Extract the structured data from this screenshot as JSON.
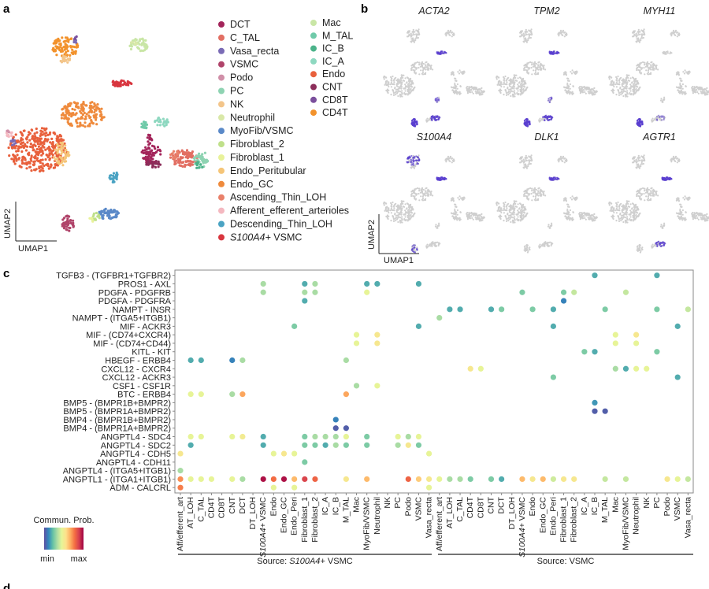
{
  "panel_labels": {
    "a": "a",
    "b": "b",
    "c": "c",
    "d": "d"
  },
  "umap": {
    "axis_x": "UMAP1",
    "axis_y": "UMAP2",
    "legend": [
      {
        "label": "DCT",
        "color": "#a3245a"
      },
      {
        "label": "C_TAL",
        "color": "#e26f63"
      },
      {
        "label": "Vasa_recta",
        "color": "#7a6bb5"
      },
      {
        "label": "VSMC",
        "color": "#b0446a"
      },
      {
        "label": "Podo",
        "color": "#d08fa8"
      },
      {
        "label": "PC",
        "color": "#8ed3b2"
      },
      {
        "label": "NK",
        "color": "#f3c58a"
      },
      {
        "label": "Neutrophil",
        "color": "#d9e8a8"
      },
      {
        "label": "MyoFib/VSMC",
        "color": "#5a89c8"
      },
      {
        "label": "Fibroblast_2",
        "color": "#bfe08a"
      },
      {
        "label": "Fibroblast_1",
        "color": "#e8f29a"
      },
      {
        "label": "Endo_Peritubular",
        "color": "#f5c578"
      },
      {
        "label": "Endo_GC",
        "color": "#ef8a3c"
      },
      {
        "label": "Ascending_Thin_LOH",
        "color": "#e9806a"
      },
      {
        "label": "Afferent_efferent_arterioles",
        "color": "#f4b8c0"
      },
      {
        "label": "Descending_Thin_LOH",
        "color": "#4aa3c3"
      },
      {
        "label": "S100A4+ VSMC",
        "color": "#d8363f"
      },
      {
        "label": "Mac",
        "color": "#c9e6a6"
      },
      {
        "label": "M_TAL",
        "color": "#6fcaa9"
      },
      {
        "label": "IC_B",
        "color": "#4bb38a"
      },
      {
        "label": "IC_A",
        "color": "#8ed8c0"
      },
      {
        "label": "Endo",
        "color": "#e8603c"
      },
      {
        "label": "CNT",
        "color": "#8c2e5a"
      },
      {
        "label": "CD8T",
        "color": "#7b4f9c"
      },
      {
        "label": "CD4T",
        "color": "#f2922c"
      }
    ]
  },
  "feature_plots": {
    "background_color": "#cfcfcf",
    "expression_color": "#5a3fd0",
    "genes": [
      {
        "name": "ACTA2",
        "expressing_clusters": [
          [
            "VSMC",
            1.0
          ],
          [
            "S100A4+ VSMC",
            0.7
          ],
          [
            "MyoFib/VSMC",
            0.6
          ],
          [
            "Descending_Thin_LOH",
            0.3
          ]
        ]
      },
      {
        "name": "TPM2",
        "expressing_clusters": [
          [
            "VSMC",
            0.9
          ],
          [
            "S100A4+ VSMC",
            0.8
          ],
          [
            "MyoFib/VSMC",
            0.6
          ],
          [
            "Descending_Thin_LOH",
            0.3
          ]
        ]
      },
      {
        "name": "MYH11",
        "expressing_clusters": [
          [
            "VSMC",
            1.0
          ],
          [
            "MyoFib/VSMC",
            0.15
          ]
        ]
      },
      {
        "name": "S100A4",
        "expressing_clusters": [
          [
            "S100A4+ VSMC",
            1.0
          ],
          [
            "CD4T",
            0.5
          ],
          [
            "VSMC",
            0.4
          ]
        ]
      },
      {
        "name": "DLK1",
        "expressing_clusters": [
          [
            "S100A4+ VSMC",
            0.7
          ]
        ]
      },
      {
        "name": "AGTR1",
        "expressing_clusters": [
          [
            "S100A4+ VSMC",
            1.0
          ],
          [
            "MyoFib/VSMC",
            0.5
          ]
        ]
      }
    ]
  },
  "chart_data": {
    "type": "scatter",
    "subtype": "dot plot (ligand-receptor communication probability)",
    "colorbar": {
      "title": "Commun. Prob.",
      "min_label": "min",
      "max_label": "max",
      "palette": [
        "#5e4fa2",
        "#3288bd",
        "#66c2a5",
        "#abdda4",
        "#e6f598",
        "#fee08b",
        "#fdae61",
        "#f46d43",
        "#d53e4f",
        "#9e0142"
      ]
    },
    "value_scale": "relative 0 (min) to 1 (max)",
    "sources": [
      {
        "label": "Source: ",
        "italic": "S100A4+",
        "rest": " VSMC"
      },
      {
        "label": "Source: VSMC",
        "italic": "",
        "rest": ""
      }
    ],
    "targets": [
      "Aff/efferent_art",
      "AT_LOH",
      "C_TAL",
      "CD4T",
      "CD8T",
      "CNT",
      "DCT",
      "DT_LOH",
      "S100A4+ VSMC",
      "Endo",
      "Endo_GC",
      "Endo_Peri",
      "Fibroblast_1",
      "Fibroblast_2",
      "IC_A",
      "IC_B",
      "M_TAL",
      "Mac",
      "MyoFib/VSMC",
      "Neutrophil",
      "NK",
      "PC",
      "Podo",
      "VSMC",
      "Vasa_recta"
    ],
    "rows": [
      {
        "label": "TGFB3 - (TGFBR1+TGFBR2)",
        "points": [
          [
            40,
            0.18
          ],
          [
            46,
            0.18
          ]
        ]
      },
      {
        "label": "PROS1 - AXL",
        "points": [
          [
            8,
            0.33
          ],
          [
            12,
            0.18
          ],
          [
            13,
            0.33
          ],
          [
            18,
            0.18
          ],
          [
            19,
            0.18
          ],
          [
            23,
            0.18
          ]
        ]
      },
      {
        "label": "PDGFA - PDGFRB",
        "points": [
          [
            8,
            0.33
          ],
          [
            12,
            0.33
          ],
          [
            13,
            0.33
          ],
          [
            18,
            0.45
          ],
          [
            33,
            0.26
          ],
          [
            37,
            0.26
          ],
          [
            38,
            0.38
          ],
          [
            43,
            0.38
          ]
        ]
      },
      {
        "label": "PDGFA - PDGFRA",
        "points": [
          [
            12,
            0.18
          ],
          [
            37,
            0.1
          ]
        ]
      },
      {
        "label": "NAMPT - INSR",
        "points": [
          [
            26,
            0.18
          ],
          [
            27,
            0.18
          ],
          [
            30,
            0.18
          ],
          [
            31,
            0.26
          ],
          [
            34,
            0.26
          ],
          [
            36,
            0.18
          ],
          [
            41,
            0.26
          ],
          [
            46,
            0.26
          ],
          [
            49,
            0.38
          ]
        ]
      },
      {
        "label": "NAMPT - (ITGA5+ITGB1)",
        "points": [
          [
            25,
            0.33
          ]
        ]
      },
      {
        "label": "MIF - ACKR3",
        "points": [
          [
            11,
            0.26
          ],
          [
            23,
            0.18
          ],
          [
            36,
            0.18
          ],
          [
            48,
            0.18
          ]
        ]
      },
      {
        "label": "MIF - (CD74+CXCR4)",
        "points": [
          [
            17,
            0.45
          ],
          [
            19,
            0.52
          ],
          [
            42,
            0.45
          ],
          [
            44,
            0.52
          ]
        ]
      },
      {
        "label": "MIF - (CD74+CD44)",
        "points": [
          [
            17,
            0.45
          ],
          [
            19,
            0.52
          ],
          [
            42,
            0.45
          ],
          [
            44,
            0.45
          ]
        ]
      },
      {
        "label": "KITL - KIT",
        "points": [
          [
            39,
            0.26
          ],
          [
            40,
            0.18
          ],
          [
            46,
            0.26
          ]
        ]
      },
      {
        "label": "HBEGF - ERBB4",
        "points": [
          [
            1,
            0.18
          ],
          [
            2,
            0.18
          ],
          [
            5,
            0.1
          ],
          [
            6,
            0.33
          ],
          [
            16,
            0.33
          ]
        ]
      },
      {
        "label": "CXCL12 - CXCR4",
        "points": [
          [
            28,
            0.52
          ],
          [
            29,
            0.45
          ],
          [
            42,
            0.33
          ],
          [
            43,
            0.18
          ],
          [
            44,
            0.45
          ],
          [
            45,
            0.45
          ]
        ]
      },
      {
        "label": "CXCL12 - ACKR3",
        "points": [
          [
            36,
            0.26
          ],
          [
            48,
            0.18
          ]
        ]
      },
      {
        "label": "CSF1 - CSF1R",
        "points": [
          [
            17,
            0.33
          ],
          [
            19,
            0.45
          ]
        ]
      },
      {
        "label": "BTC - ERBB4",
        "points": [
          [
            1,
            0.45
          ],
          [
            2,
            0.45
          ],
          [
            5,
            0.33
          ],
          [
            6,
            0.68
          ],
          [
            16,
            0.68
          ]
        ]
      },
      {
        "label": "BMP5 - (BMPR1B+BMPR2)",
        "points": [
          [
            40,
            0.14
          ]
        ]
      },
      {
        "label": "BMP5 - (BMPR1A+BMPR2)",
        "points": [
          [
            40,
            0.03
          ],
          [
            41,
            0.03
          ]
        ]
      },
      {
        "label": "BMP4 - (BMPR1B+BMPR2)",
        "points": [
          [
            15,
            0.1
          ]
        ]
      },
      {
        "label": "BMP4 - (BMPR1A+BMPR2)",
        "points": [
          [
            15,
            0.03
          ],
          [
            16,
            0.03
          ]
        ]
      },
      {
        "label": "ANGPTL4 - SDC4",
        "points": [
          [
            1,
            0.45
          ],
          [
            2,
            0.45
          ],
          [
            5,
            0.45
          ],
          [
            6,
            0.5
          ],
          [
            8,
            0.18
          ],
          [
            12,
            0.26
          ],
          [
            13,
            0.33
          ],
          [
            14,
            0.33
          ],
          [
            15,
            0.33
          ],
          [
            16,
            0.45
          ],
          [
            18,
            0.26
          ],
          [
            21,
            0.45
          ],
          [
            22,
            0.33
          ],
          [
            23,
            0.45
          ]
        ]
      },
      {
        "label": "ANGPTL4 - SDC2",
        "points": [
          [
            1,
            0.18
          ],
          [
            8,
            0.18
          ],
          [
            12,
            0.26
          ],
          [
            13,
            0.26
          ],
          [
            14,
            0.18
          ],
          [
            15,
            0.33
          ],
          [
            16,
            0.26
          ],
          [
            18,
            0.26
          ],
          [
            21,
            0.33
          ],
          [
            22,
            0.52
          ],
          [
            23,
            0.26
          ]
        ]
      },
      {
        "label": "ANGPTL4 - CDH5",
        "points": [
          [
            0,
            0.52
          ],
          [
            9,
            0.45
          ],
          [
            10,
            0.52
          ],
          [
            11,
            0.45
          ],
          [
            24,
            0.45
          ]
        ]
      },
      {
        "label": "ANGPTL4 - CDH11",
        "points": [
          [
            12,
            0.26
          ]
        ]
      },
      {
        "label": "ANGPTL4 - (ITGA5+ITGB1)",
        "points": [
          [
            0,
            0.33
          ]
        ]
      },
      {
        "label": "ANGPTL1 - (ITGA1+ITGB1)",
        "points": [
          [
            0,
            0.72
          ],
          [
            1,
            0.45
          ],
          [
            2,
            0.45
          ],
          [
            3,
            0.45
          ],
          [
            5,
            0.45
          ],
          [
            6,
            0.33
          ],
          [
            8,
            0.97
          ],
          [
            9,
            0.78
          ],
          [
            10,
            0.97
          ],
          [
            11,
            0.64
          ],
          [
            12,
            0.87
          ],
          [
            13,
            0.8
          ],
          [
            16,
            0.52
          ],
          [
            18,
            0.64
          ],
          [
            22,
            0.8
          ],
          [
            23,
            0.6
          ],
          [
            24,
            0.52
          ],
          [
            25,
            0.45
          ],
          [
            26,
            0.33
          ],
          [
            27,
            0.33
          ],
          [
            28,
            0.26
          ],
          [
            30,
            0.26
          ],
          [
            31,
            0.18
          ],
          [
            33,
            0.64
          ],
          [
            34,
            0.52
          ],
          [
            35,
            0.64
          ],
          [
            36,
            0.4
          ],
          [
            37,
            0.52
          ],
          [
            38,
            0.52
          ],
          [
            41,
            0.38
          ],
          [
            43,
            0.38
          ],
          [
            47,
            0.52
          ],
          [
            48,
            0.45
          ],
          [
            49,
            0.38
          ]
        ]
      },
      {
        "label": "ADM - CALCRL",
        "points": [
          [
            0,
            0.75
          ],
          [
            9,
            0.45
          ],
          [
            11,
            0.45
          ],
          [
            24,
            0.45
          ]
        ]
      }
    ]
  }
}
